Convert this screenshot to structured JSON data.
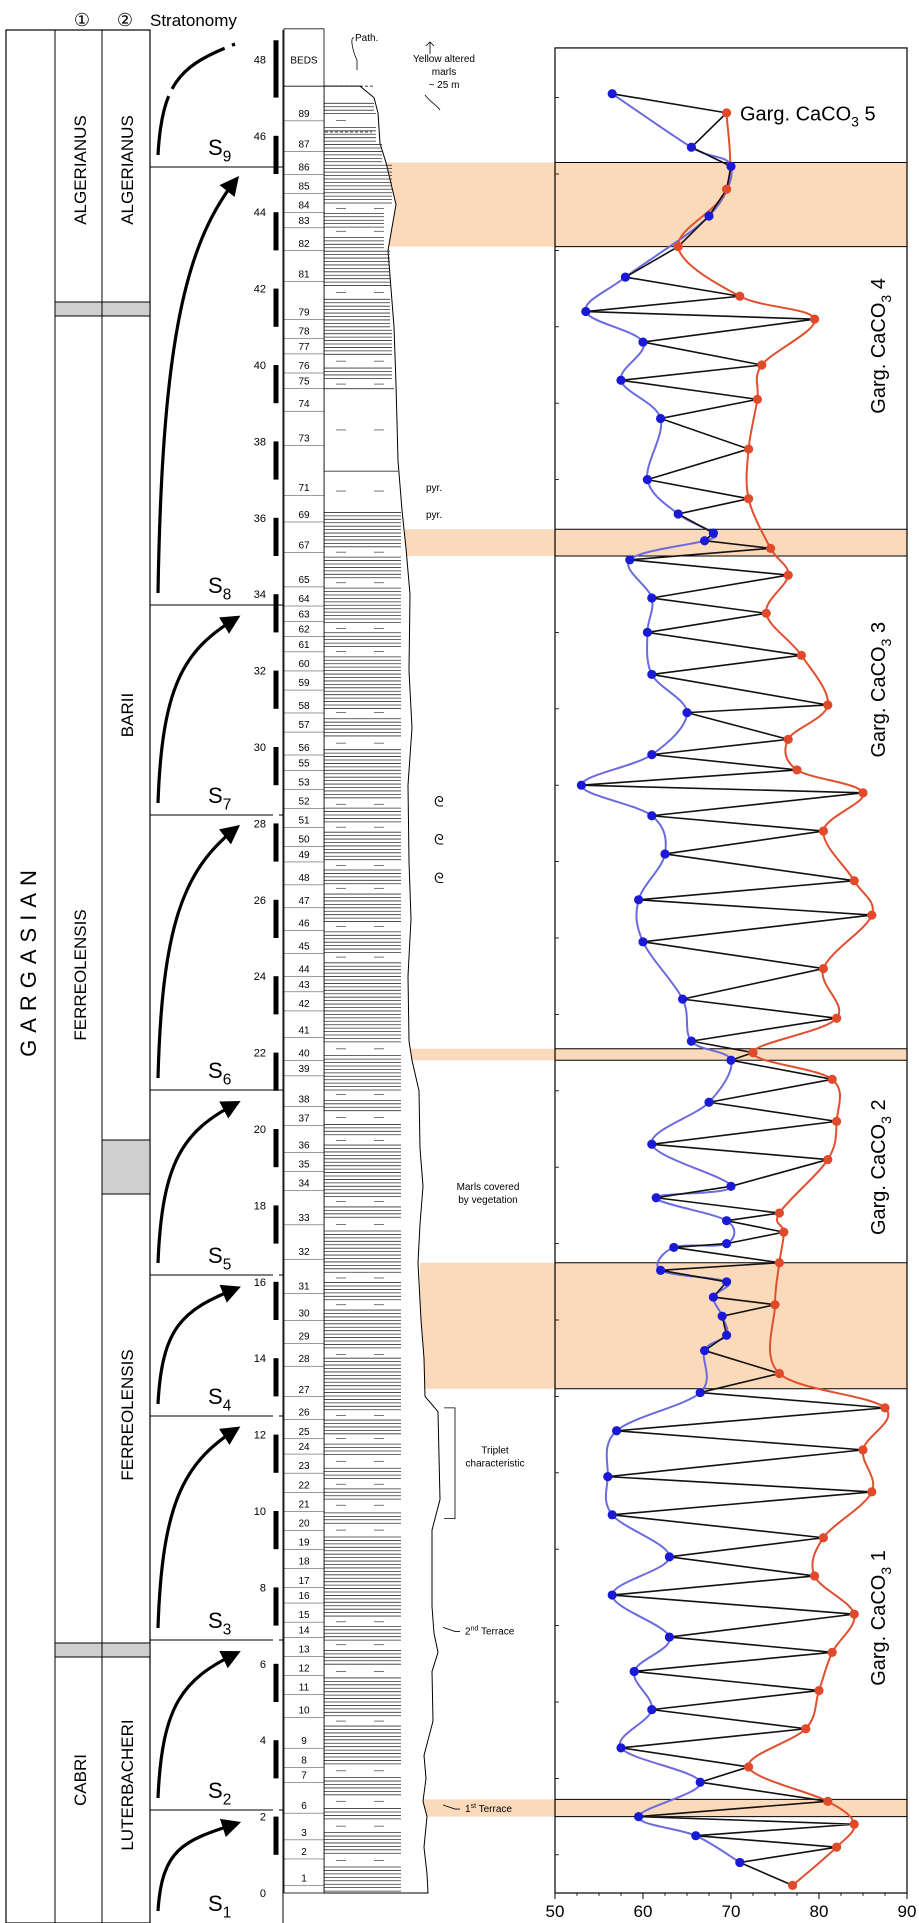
{
  "headers": {
    "col1": "①",
    "col2": "②",
    "col3": "Stratonomy"
  },
  "stage": "GARGASIAN",
  "zones_col1": [
    "ALGERIANUS",
    "FERREOLENSIS",
    "CABRI"
  ],
  "zones_col2": [
    "ALGERIANUS",
    "BARII",
    "FERREOLENSIS",
    "LUTERBACHERI"
  ],
  "sequences": [
    {
      "base": "S",
      "sub": "1"
    },
    {
      "base": "S",
      "sub": "2"
    },
    {
      "base": "S",
      "sub": "3"
    },
    {
      "base": "S",
      "sub": "4"
    },
    {
      "base": "S",
      "sub": "5"
    },
    {
      "base": "S",
      "sub": "6"
    },
    {
      "base": "S",
      "sub": "7"
    },
    {
      "base": "S",
      "sub": "8"
    },
    {
      "base": "S",
      "sub": "9"
    }
  ],
  "section": {
    "meter_ticks": [
      "0",
      "2",
      "4",
      "6",
      "8",
      "10",
      "12",
      "14",
      "16",
      "18",
      "20",
      "22",
      "24",
      "26",
      "28",
      "30",
      "32",
      "34",
      "36",
      "38",
      "40",
      "42",
      "44",
      "46",
      "48"
    ],
    "bed_numbers": [
      "1",
      "2",
      "3",
      "6",
      "7",
      "8",
      "9",
      "10",
      "11",
      "12",
      "13",
      "14",
      "15",
      "16",
      "17",
      "18",
      "19",
      "20",
      "21",
      "22",
      "23",
      "24",
      "25",
      "26",
      "27",
      "28",
      "29",
      "30",
      "31",
      "32",
      "33",
      "34",
      "35",
      "36",
      "37",
      "38",
      "39",
      "40",
      "41",
      "42",
      "43",
      "44",
      "45",
      "46",
      "47",
      "48",
      "49",
      "50",
      "51",
      "52",
      "53",
      "55",
      "56",
      "57",
      "58",
      "59",
      "60",
      "61",
      "62",
      "63",
      "64",
      "65",
      "67",
      "69",
      "71",
      "73",
      "74",
      "75",
      "76",
      "77",
      "78",
      "79",
      "81",
      "82",
      "83",
      "84",
      "85",
      "86",
      "87",
      "89"
    ],
    "beds_label": "BEDS"
  },
  "annotations": {
    "path": "Path.",
    "yellow1": "Yellow altered",
    "yellow2": "marls",
    "yellow3": "~ 25 m",
    "pyr1": "pyr.",
    "pyr2": "pyr.",
    "marls1": "Marls covered",
    "marls2": "by vegetation",
    "triplet1": "Triplet",
    "triplet2": "characteristic",
    "terrace2_num": "2",
    "terrace2_sup": "nd",
    "terrace2_word": " Terrace",
    "terrace1_num": "1",
    "terrace1_sup": "st",
    "terrace1_word": " Terrace",
    "ammonite": "ᘓ"
  },
  "chart_data": {
    "type": "line",
    "xlim": [
      50,
      90
    ],
    "x_ticks": [
      "50",
      "60",
      "70",
      "80",
      "90"
    ],
    "ylim": [
      0,
      48.5
    ],
    "series": [
      {
        "values": [
          [
            77,
            0.2
          ],
          [
            71,
            0.8
          ],
          [
            82,
            1.2
          ],
          [
            66,
            1.5
          ],
          [
            84,
            1.8
          ],
          [
            59.5,
            2.0
          ],
          [
            81,
            2.4
          ],
          [
            66.5,
            2.9
          ],
          [
            72,
            3.3
          ],
          [
            57.5,
            3.8
          ],
          [
            78.5,
            4.3
          ],
          [
            61,
            4.8
          ],
          [
            80,
            5.3
          ],
          [
            59,
            5.8
          ],
          [
            81.5,
            6.3
          ],
          [
            63,
            6.7
          ],
          [
            84,
            7.3
          ],
          [
            56.5,
            7.8
          ],
          [
            79.5,
            8.3
          ],
          [
            63,
            8.8
          ],
          [
            80.5,
            9.3
          ],
          [
            56.5,
            9.9
          ],
          [
            86,
            10.5
          ],
          [
            56,
            10.9
          ],
          [
            85,
            11.6
          ],
          [
            57,
            12.1
          ],
          [
            87.5,
            12.7
          ],
          [
            66.5,
            13.1
          ],
          [
            75.5,
            13.6
          ],
          [
            67,
            14.2
          ],
          [
            69.5,
            14.6
          ],
          [
            69,
            15.1
          ],
          [
            75,
            15.4
          ],
          [
            68,
            15.6
          ],
          [
            69.5,
            16.0
          ],
          [
            62,
            16.3
          ],
          [
            75.5,
            16.5
          ],
          [
            63.5,
            16.9
          ],
          [
            69.5,
            17.0
          ],
          [
            76,
            17.3
          ],
          [
            69.5,
            17.6
          ],
          [
            75.5,
            17.8
          ],
          [
            61.5,
            18.2
          ],
          [
            70,
            18.5
          ],
          [
            81,
            19.2
          ],
          [
            61,
            19.6
          ],
          [
            82,
            20.2
          ],
          [
            67.5,
            20.7
          ],
          [
            81.5,
            21.3
          ],
          [
            70,
            21.8
          ],
          [
            72.5,
            22.0
          ],
          [
            65.5,
            22.3
          ],
          [
            82,
            22.9
          ],
          [
            64.5,
            23.4
          ],
          [
            80.5,
            24.2
          ],
          [
            60,
            24.9
          ],
          [
            86,
            25.6
          ],
          [
            59.5,
            26.0
          ],
          [
            84,
            26.5
          ],
          [
            62.5,
            27.2
          ],
          [
            80.5,
            27.8
          ],
          [
            61,
            28.2
          ],
          [
            85,
            28.8
          ],
          [
            53,
            29.0
          ],
          [
            77.5,
            29.4
          ],
          [
            61,
            29.8
          ],
          [
            76.5,
            30.2
          ],
          [
            65,
            30.9
          ],
          [
            81,
            31.1
          ],
          [
            61,
            31.9
          ],
          [
            78,
            32.4
          ],
          [
            60.5,
            33.0
          ],
          [
            74,
            33.5
          ],
          [
            61,
            33.9
          ],
          [
            76.5,
            34.5
          ],
          [
            58.5,
            34.9
          ],
          [
            74.5,
            35.2
          ],
          [
            67,
            35.4
          ],
          [
            68,
            35.6
          ],
          [
            64,
            36.1
          ],
          [
            72,
            36.5
          ],
          [
            60.5,
            37.0
          ],
          [
            72,
            37.8
          ],
          [
            62,
            38.6
          ],
          [
            73,
            39.1
          ],
          [
            57.5,
            39.6
          ],
          [
            73.5,
            40.0
          ],
          [
            60,
            40.6
          ],
          [
            79.5,
            41.2
          ],
          [
            53.5,
            41.4
          ],
          [
            71,
            41.8
          ],
          [
            58,
            42.3
          ],
          [
            64,
            43.1
          ],
          [
            67.5,
            43.9
          ],
          [
            69.5,
            44.6
          ],
          [
            70,
            45.2
          ],
          [
            65.5,
            45.7
          ],
          [
            69.5,
            46.6
          ],
          [
            56.5,
            47.1
          ]
        ]
      },
      {
        "values": [
          [
            77,
            0.2
          ],
          [
            82,
            1.2
          ],
          [
            84,
            1.8
          ],
          [
            81,
            2.4
          ],
          [
            72,
            3.3
          ],
          [
            78.5,
            4.3
          ],
          [
            80,
            5.3
          ],
          [
            81.5,
            6.3
          ],
          [
            84,
            7.3
          ],
          [
            79.5,
            8.3
          ],
          [
            80.5,
            9.3
          ],
          [
            86,
            10.5
          ],
          [
            85,
            11.6
          ],
          [
            87.5,
            12.7
          ],
          [
            75.5,
            13.6
          ],
          [
            75,
            15.4
          ],
          [
            75.5,
            16.5
          ],
          [
            76,
            17.3
          ],
          [
            75.5,
            17.8
          ],
          [
            81,
            19.2
          ],
          [
            82,
            20.2
          ],
          [
            81.5,
            21.3
          ],
          [
            72.5,
            22.0
          ],
          [
            82,
            22.9
          ],
          [
            80.5,
            24.2
          ],
          [
            86,
            25.6
          ],
          [
            84,
            26.5
          ],
          [
            80.5,
            27.8
          ],
          [
            85,
            28.8
          ],
          [
            77.5,
            29.4
          ],
          [
            76.5,
            30.2
          ],
          [
            81,
            31.1
          ],
          [
            78,
            32.4
          ],
          [
            74,
            33.5
          ],
          [
            76.5,
            34.5
          ],
          [
            74.5,
            35.2
          ],
          [
            72,
            36.5
          ],
          [
            72,
            37.8
          ],
          [
            73,
            39.1
          ],
          [
            73.5,
            40.0
          ],
          [
            79.5,
            41.2
          ],
          [
            71,
            41.8
          ],
          [
            64,
            43.1
          ],
          [
            69.5,
            44.6
          ],
          [
            69.5,
            46.6
          ]
        ]
      },
      {
        "values": [
          [
            71,
            0.8
          ],
          [
            66,
            1.5
          ],
          [
            59.5,
            2.0
          ],
          [
            66.5,
            2.9
          ],
          [
            57.5,
            3.8
          ],
          [
            61,
            4.8
          ],
          [
            59,
            5.8
          ],
          [
            63,
            6.7
          ],
          [
            56.5,
            7.8
          ],
          [
            63,
            8.8
          ],
          [
            56.5,
            9.9
          ],
          [
            56,
            10.9
          ],
          [
            57,
            12.1
          ],
          [
            66.5,
            13.1
          ],
          [
            67,
            14.2
          ],
          [
            69.5,
            14.6
          ],
          [
            69,
            15.1
          ],
          [
            68,
            15.6
          ],
          [
            69.5,
            16.0
          ],
          [
            62,
            16.3
          ],
          [
            63.5,
            16.9
          ],
          [
            69.5,
            17.0
          ],
          [
            69.5,
            17.6
          ],
          [
            61.5,
            18.2
          ],
          [
            70,
            18.5
          ],
          [
            61,
            19.6
          ],
          [
            67.5,
            20.7
          ],
          [
            70,
            21.8
          ],
          [
            65.5,
            22.3
          ],
          [
            64.5,
            23.4
          ],
          [
            60,
            24.9
          ],
          [
            59.5,
            26.0
          ],
          [
            62.5,
            27.2
          ],
          [
            61,
            28.2
          ],
          [
            53,
            29.0
          ],
          [
            61,
            29.8
          ],
          [
            65,
            30.9
          ],
          [
            61,
            31.9
          ],
          [
            60.5,
            33.0
          ],
          [
            61,
            33.9
          ],
          [
            58.5,
            34.9
          ],
          [
            67,
            35.4
          ],
          [
            68,
            35.6
          ],
          [
            64,
            36.1
          ],
          [
            60.5,
            37.0
          ],
          [
            62,
            38.6
          ],
          [
            57.5,
            39.6
          ],
          [
            60,
            40.6
          ],
          [
            53.5,
            41.4
          ],
          [
            58,
            42.3
          ],
          [
            67.5,
            43.9
          ],
          [
            70,
            45.2
          ],
          [
            65.5,
            45.7
          ],
          [
            56.5,
            47.1
          ]
        ]
      }
    ],
    "labels": [
      {
        "pre": "Garg. CaCO",
        "sub": "3",
        "post": "  1"
      },
      {
        "pre": "Garg. CaCO",
        "sub": "3",
        "post": "  2"
      },
      {
        "pre": "Garg. CaCO",
        "sub": "3",
        "post": "  3"
      },
      {
        "pre": "Garg. CaCO",
        "sub": "3",
        "post": "  4"
      },
      {
        "pre": "Garg. CaCO",
        "sub": "3",
        "post": "  5"
      }
    ],
    "grid": false
  }
}
